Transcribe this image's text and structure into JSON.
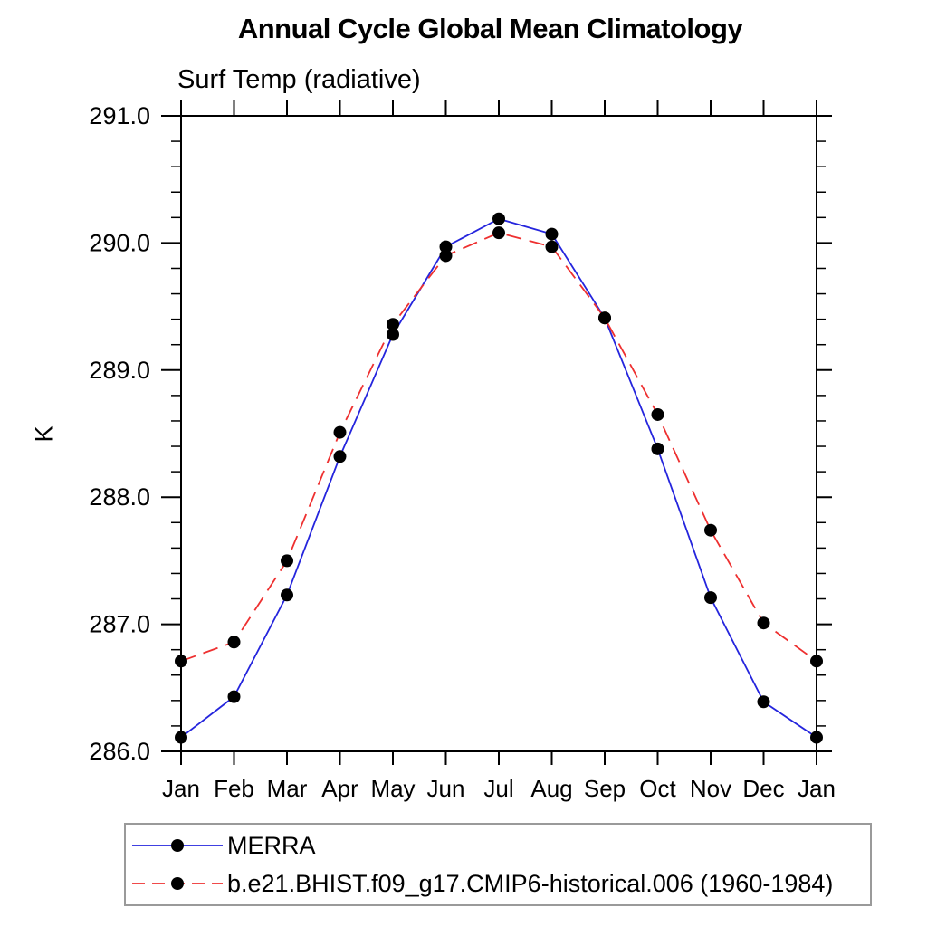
{
  "chart_data": {
    "type": "line",
    "title": "Annual Cycle Global Mean Climatology",
    "subtitle": "Surf Temp (radiative)",
    "ylabel": "K",
    "xlabel": "",
    "ylim": [
      286.0,
      291.0
    ],
    "y_major_step": 1.0,
    "y_minor_step": 0.2,
    "y_tick_labels": [
      "286.0",
      "287.0",
      "288.0",
      "289.0",
      "290.0",
      "291.0"
    ],
    "categories": [
      "Jan",
      "Feb",
      "Mar",
      "Apr",
      "May",
      "Jun",
      "Jul",
      "Aug",
      "Sep",
      "Oct",
      "Nov",
      "Dec",
      "Jan"
    ],
    "grid": false,
    "legend_position": "bottom-left",
    "axis_color": "#000000",
    "series": [
      {
        "name": "MERRA",
        "color": "#2525dd",
        "style": "solid",
        "marker": "circle",
        "marker_color": "#000000",
        "values": [
          286.11,
          286.43,
          287.23,
          288.32,
          289.28,
          289.97,
          290.19,
          290.07,
          289.41,
          288.38,
          287.21,
          286.39,
          286.11
        ]
      },
      {
        "name": "b.e21.BHIST.f09_g17.CMIP6-historical.006 (1960-1984)",
        "color": "#ee3030",
        "style": "dashed",
        "marker": "circle",
        "marker_color": "#000000",
        "values": [
          286.71,
          286.86,
          287.5,
          288.51,
          289.36,
          289.9,
          290.08,
          289.97,
          289.41,
          288.65,
          287.74,
          287.01,
          286.71
        ]
      }
    ]
  }
}
